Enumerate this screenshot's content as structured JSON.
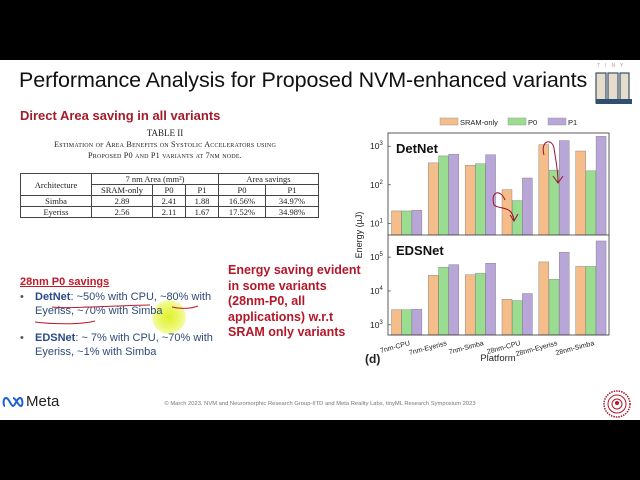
{
  "slide": {
    "title": "Performance Analysis for Proposed NVM-enhanced variants",
    "logo_top_right": {
      "text": "TINY",
      "mark": "ML"
    },
    "subhead": "Direct Area saving in all variants",
    "table": {
      "caption_line1": "TABLE II",
      "caption_line2": "Estimation of Area Benefits on Systolic Accelerators using",
      "caption_line3": "Proposed P0 and P1 variants at 7nm node.",
      "header_arch": "Architecture",
      "header_group1": "7 nm Area (mm²)",
      "header_group2": "Area savings",
      "subheaders": [
        "SRAM-only",
        "P0",
        "P1",
        "P0",
        "P1"
      ],
      "rows": [
        {
          "arch": "Simba",
          "cells": [
            "2.89",
            "2.41",
            "1.88",
            "16.56%",
            "34.97%"
          ]
        },
        {
          "arch": "Eyeriss",
          "cells": [
            "2.56",
            "2.11",
            "1.67",
            "17.52%",
            "34.98%"
          ]
        }
      ]
    },
    "p0_savings": {
      "heading": "28nm P0 savings",
      "bullets": [
        {
          "bold": "DetNet",
          "text": ": ~50% with CPU, ~80% with Eyeriss, ~70% with Simba"
        },
        {
          "bold": "EDSNet",
          "text": ": ~ 7% with CPU, ~70% with Eyeriss, ~1% with Simba"
        }
      ]
    },
    "energy_note": "Energy saving evident in some variants (28nm-P0, all applications) w.r.t SRAM only variants",
    "footer": {
      "brand": "Meta",
      "copyright": "© March 2023, NVM and Neuromorphic Research Group-IITD and Meta Reality Labs, tinyML Research Symposium 2023"
    }
  },
  "colors": {
    "sram": "#f4bd8a",
    "p0": "#9adc90",
    "p1": "#b9a6d9",
    "accent_red": "#b3172a",
    "bullet_blue": "#2f4a7a"
  },
  "chart_data": {
    "type": "bar",
    "panel_label": "(d)",
    "xlabel": "Platform",
    "ylabel": "Energy (µJ)",
    "legend": [
      "SRAM-only",
      "P0",
      "P1"
    ],
    "legend_position": "top",
    "scale": "log",
    "categories": [
      "7nm-CPU",
      "7nm-Eyeriss",
      "7nm-Simba",
      "28nm-CPU",
      "28nm-Eyeriss",
      "28nm-Simba"
    ],
    "panels": [
      {
        "title": "DetNet",
        "yticks": [
          "10^1",
          "10^2",
          "10^3"
        ],
        "ylim": [
          5,
          2000
        ],
        "series": [
          {
            "name": "SRAM-only",
            "values": [
              21,
              370,
              320,
              75,
              1100,
              750
            ]
          },
          {
            "name": "P0",
            "values": [
              21,
              560,
              350,
              39,
              240,
              230
            ]
          },
          {
            "name": "P1",
            "values": [
              22,
              620,
              600,
              150,
              1400,
              1800
            ]
          }
        ]
      },
      {
        "title": "EDSNet",
        "yticks": [
          "10^3",
          "10^4",
          "10^5"
        ],
        "ylim": [
          500,
          400000
        ],
        "series": [
          {
            "name": "SRAM-only",
            "values": [
              2800,
              29000,
              30000,
              5700,
              72000,
              53000
            ]
          },
          {
            "name": "P0",
            "values": [
              2800,
              50000,
              33000,
              5200,
              22000,
              53000
            ]
          },
          {
            "name": "P1",
            "values": [
              2900,
              60000,
              66000,
              8400,
              140000,
              300000
            ]
          }
        ]
      }
    ]
  }
}
